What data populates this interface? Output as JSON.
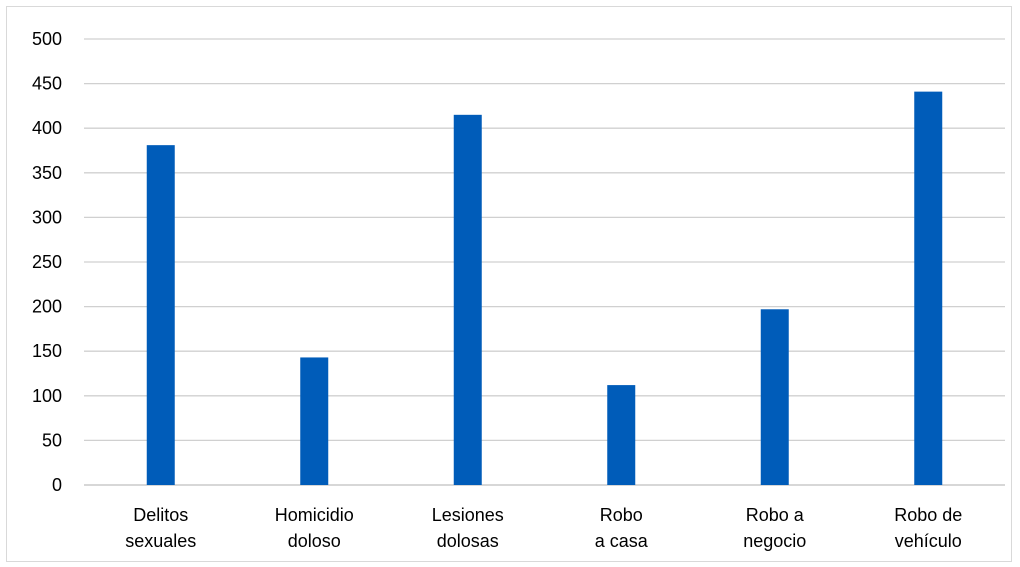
{
  "chart_data": {
    "type": "bar",
    "title": "",
    "xlabel": "",
    "ylabel": "",
    "categories": [
      [
        "Delitos",
        "sexuales"
      ],
      [
        "Homicidio",
        "doloso"
      ],
      [
        "Lesiones",
        "dolosas"
      ],
      [
        "Robo",
        "a casa"
      ],
      [
        "Robo a",
        "negocio"
      ],
      [
        "Robo de",
        "vehículo"
      ]
    ],
    "values": [
      381,
      143,
      415,
      112,
      197,
      441
    ],
    "ylim": [
      0,
      500
    ],
    "yticks": [
      0,
      50,
      100,
      150,
      200,
      250,
      300,
      350,
      400,
      450,
      500
    ],
    "grid": true,
    "legend": "none",
    "colors": {
      "bar": "#005cb9",
      "grid": "#d0d0d0",
      "axis": "#bfbfbf"
    }
  }
}
